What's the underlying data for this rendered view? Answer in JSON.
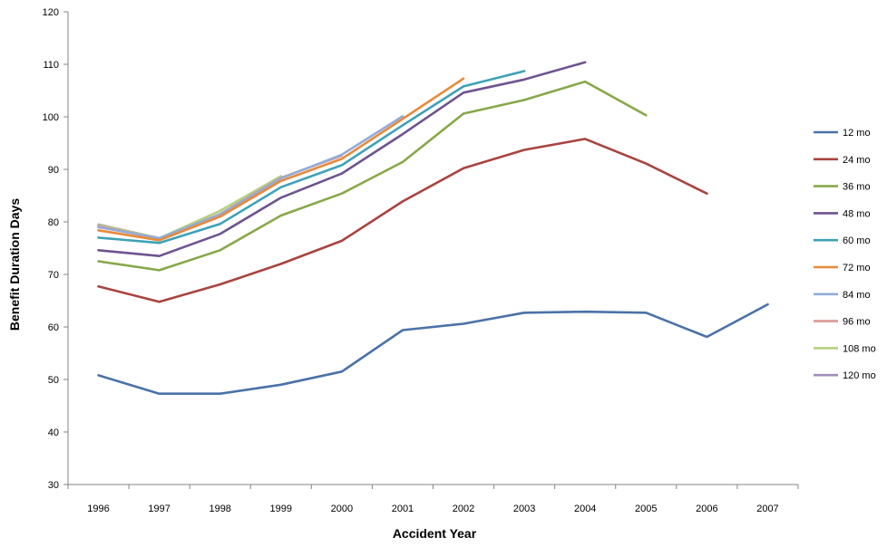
{
  "chart_data": {
    "type": "line",
    "title": "",
    "xlabel": "Accident Year",
    "ylabel": "Benefit Duration Days",
    "x": [
      "1996",
      "1997",
      "1998",
      "1999",
      "2000",
      "2001",
      "2002",
      "2003",
      "2004",
      "2005",
      "2006",
      "2007"
    ],
    "ylim": [
      30,
      120
    ],
    "yticks": [
      30,
      40,
      50,
      60,
      70,
      80,
      90,
      100,
      110,
      120
    ],
    "grid": false,
    "legend_position": "right",
    "series": [
      {
        "name": "12 mo",
        "color": "#4a72a8",
        "values": [
          50.8,
          47.3,
          47.3,
          49.0,
          51.5,
          59.4,
          60.6,
          62.7,
          62.9,
          62.7,
          58.1,
          64.3
        ]
      },
      {
        "name": "24 mo",
        "color": "#a84441",
        "values": [
          67.7,
          64.8,
          68.1,
          72.0,
          76.4,
          83.9,
          90.2,
          93.7,
          95.8,
          91.1,
          85.4,
          null
        ]
      },
      {
        "name": "36 mo",
        "color": "#87a84a",
        "values": [
          72.5,
          70.8,
          74.6,
          81.2,
          85.4,
          91.4,
          100.6,
          103.2,
          106.7,
          100.3,
          null,
          null
        ]
      },
      {
        "name": "48 mo",
        "color": "#6e548f",
        "values": [
          74.6,
          73.5,
          77.7,
          84.6,
          89.2,
          96.7,
          104.6,
          107.1,
          110.4,
          null,
          null,
          null
        ]
      },
      {
        "name": "60 mo",
        "color": "#3fa1b7",
        "values": [
          77.0,
          76.0,
          79.6,
          86.6,
          90.8,
          98.4,
          105.8,
          108.7,
          null,
          null,
          null,
          null
        ]
      },
      {
        "name": "72 mo",
        "color": "#e9893b",
        "values": [
          78.4,
          76.5,
          81.0,
          87.8,
          92.0,
          99.6,
          107.3,
          null,
          null,
          null,
          null,
          null
        ]
      },
      {
        "name": "84 mo",
        "color": "#93acd7",
        "values": [
          79.0,
          76.9,
          81.4,
          88.3,
          92.8,
          100.1,
          null,
          null,
          null,
          null,
          null,
          null
        ]
      },
      {
        "name": "96 mo",
        "color": "#dc9694",
        "values": [
          79.2,
          76.8,
          81.5,
          88.4,
          92.6,
          null,
          null,
          null,
          null,
          null,
          null,
          null
        ]
      },
      {
        "name": "108 mo",
        "color": "#b5d07f",
        "values": [
          79.4,
          76.9,
          82.1,
          88.7,
          null,
          null,
          null,
          null,
          null,
          null,
          null,
          null
        ]
      },
      {
        "name": "120 mo",
        "color": "#a08db8",
        "values": [
          79.5,
          76.9,
          null,
          null,
          null,
          null,
          null,
          null,
          null,
          null,
          null,
          null
        ]
      }
    ]
  }
}
